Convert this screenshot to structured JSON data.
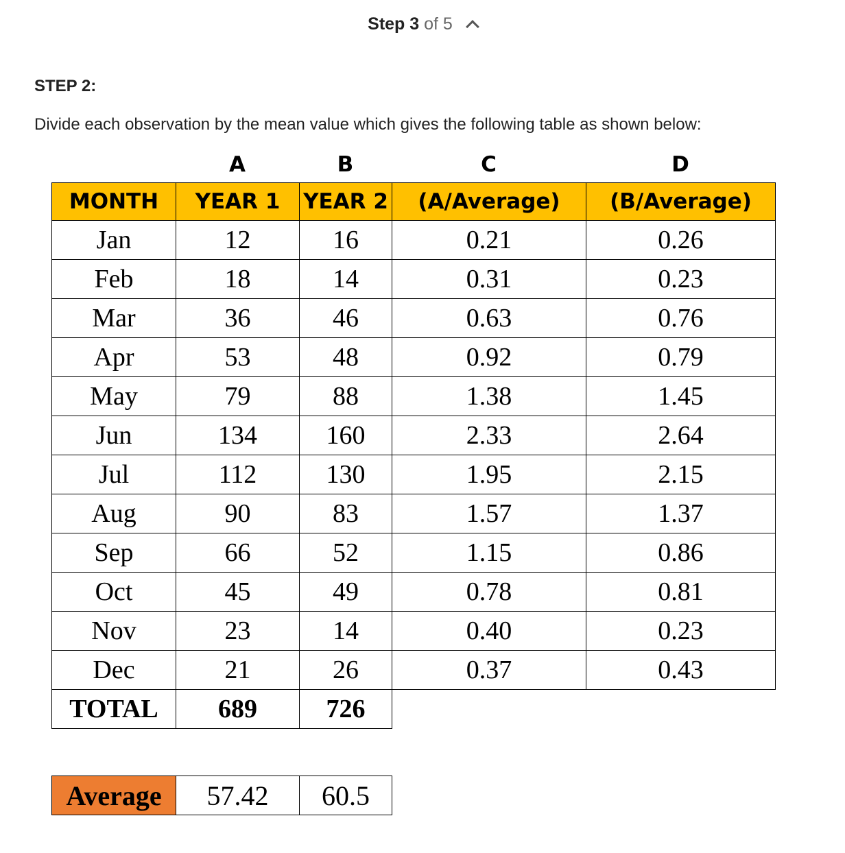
{
  "stepper": {
    "prefix": "Step",
    "current": "3",
    "of_text": "of 5"
  },
  "heading": "STEP 2:",
  "description": "Divide each observation by the mean value which gives the following table as shown below:",
  "column_letters": [
    "A",
    "B",
    "C",
    "D"
  ],
  "table": {
    "header_color": "#ffc000",
    "headers": [
      "MONTH",
      "YEAR 1",
      "YEAR 2",
      "(A/Average)",
      "(B/Average)"
    ],
    "rows": [
      [
        "Jan",
        "12",
        "16",
        "0.21",
        "0.26"
      ],
      [
        "Feb",
        "18",
        "14",
        "0.31",
        "0.23"
      ],
      [
        "Mar",
        "36",
        "46",
        "0.63",
        "0.76"
      ],
      [
        "Apr",
        "53",
        "48",
        "0.92",
        "0.79"
      ],
      [
        "May",
        "79",
        "88",
        "1.38",
        "1.45"
      ],
      [
        "Jun",
        "134",
        "160",
        "2.33",
        "2.64"
      ],
      [
        "Jul",
        "112",
        "130",
        "1.95",
        "2.15"
      ],
      [
        "Aug",
        "90",
        "83",
        "1.57",
        "1.37"
      ],
      [
        "Sep",
        "66",
        "52",
        "1.15",
        "0.86"
      ],
      [
        "Oct",
        "45",
        "49",
        "0.78",
        "0.81"
      ],
      [
        "Nov",
        "23",
        "14",
        "0.40",
        "0.23"
      ],
      [
        "Dec",
        "21",
        "26",
        "0.37",
        "0.43"
      ]
    ],
    "total": [
      "TOTAL",
      "689",
      "726"
    ]
  },
  "average": {
    "label_color": "#ed7d31",
    "label": "Average",
    "year1": "57.42",
    "year2": "60.5"
  }
}
